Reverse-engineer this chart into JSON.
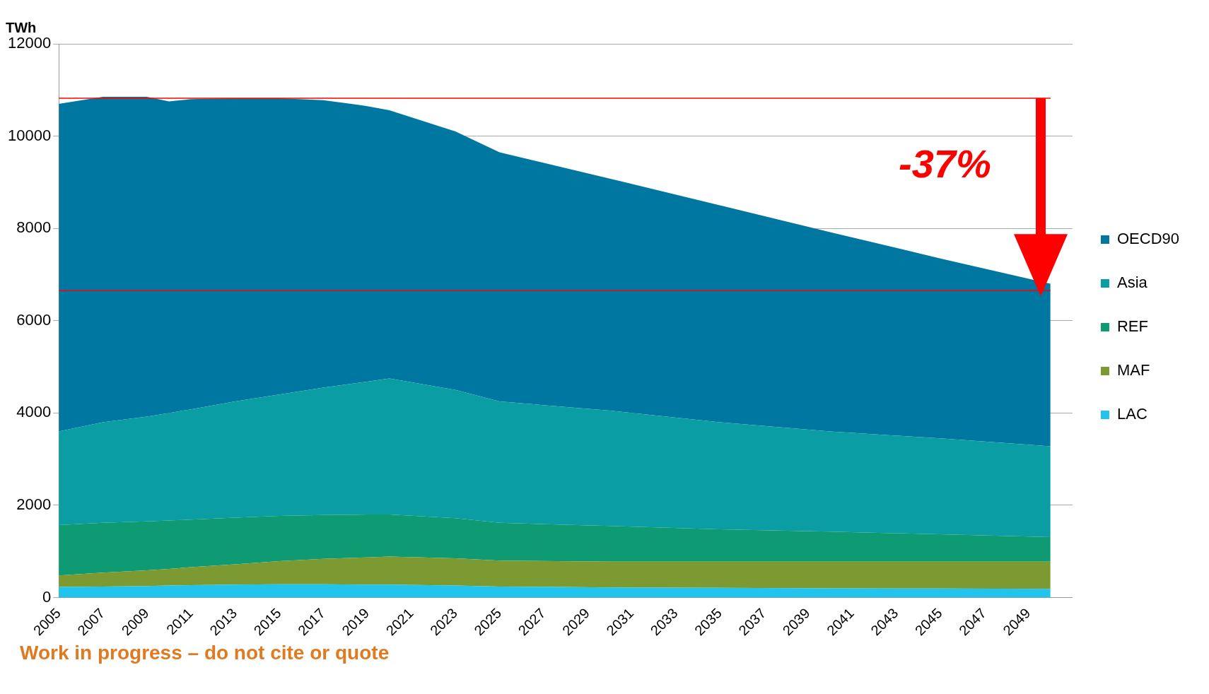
{
  "chart_data": {
    "type": "area",
    "stacked": true,
    "ylabel": "TWh",
    "x": [
      2005,
      2007,
      2009,
      2010,
      2011,
      2013,
      2015,
      2017,
      2019,
      2020,
      2023,
      2025,
      2030,
      2035,
      2040,
      2045,
      2050
    ],
    "xlim": [
      2005,
      2051
    ],
    "xticks": [
      2005,
      2007,
      2009,
      2011,
      2013,
      2015,
      2017,
      2019,
      2021,
      2023,
      2025,
      2027,
      2029,
      2031,
      2033,
      2035,
      2037,
      2039,
      2041,
      2043,
      2045,
      2047,
      2049
    ],
    "ylim": [
      0,
      12000
    ],
    "yticks": [
      0,
      2000,
      4000,
      6000,
      8000,
      10000,
      12000
    ],
    "series": [
      {
        "name": "LAC",
        "color": "#20c4ec",
        "values": [
          230,
          240,
          250,
          260,
          270,
          280,
          290,
          290,
          280,
          280,
          260,
          240,
          220,
          210,
          200,
          195,
          190
        ]
      },
      {
        "name": "MAF",
        "color": "#7d9a32",
        "values": [
          250,
          300,
          340,
          360,
          390,
          440,
          500,
          550,
          590,
          610,
          590,
          560,
          560,
          570,
          580,
          585,
          590
        ]
      },
      {
        "name": "REF",
        "color": "#0e9a72",
        "values": [
          1090,
          1080,
          1060,
          1050,
          1030,
          1010,
          980,
          950,
          930,
          910,
          870,
          820,
          770,
          700,
          650,
          590,
          530
        ]
      },
      {
        "name": "Asia",
        "color": "#0a9ea4",
        "values": [
          2030,
          2180,
          2270,
          2330,
          2390,
          2520,
          2630,
          2760,
          2880,
          2950,
          2780,
          2630,
          2500,
          2320,
          2170,
          2080,
          1970
        ]
      },
      {
        "name": "OECD90",
        "color": "#0077a0",
        "values": [
          7100,
          7050,
          6930,
          6750,
          6720,
          6570,
          6420,
          6230,
          5970,
          5810,
          5600,
          5400,
          5030,
          4700,
          4320,
          3900,
          3520
        ]
      }
    ],
    "ref_lines": [
      {
        "axis": "y",
        "value": 10820,
        "color": "#ff0000"
      },
      {
        "axis": "y",
        "value": 6650,
        "color": "#ff0000"
      }
    ],
    "annotations": [
      "-37%",
      "Work in progress – do not cite or quote"
    ],
    "grid": "y",
    "legend": "right",
    "marker": "none"
  }
}
